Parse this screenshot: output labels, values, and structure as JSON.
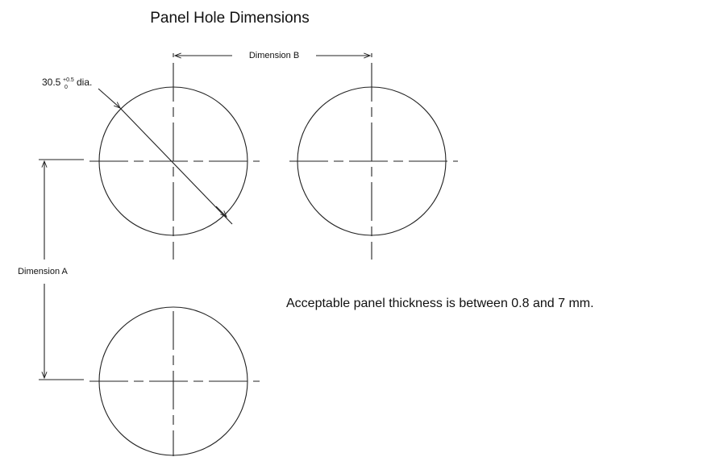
{
  "title": "Panel Hole Dimensions",
  "hole_label": {
    "value": "30.5",
    "upper_tolerance": "+0.5",
    "lower_tolerance": "0",
    "suffix": "dia."
  },
  "dimension_a": "Dimension A",
  "dimension_b": "Dimension B",
  "note": "Acceptable panel thickness is between 0.8 and 7 mm."
}
